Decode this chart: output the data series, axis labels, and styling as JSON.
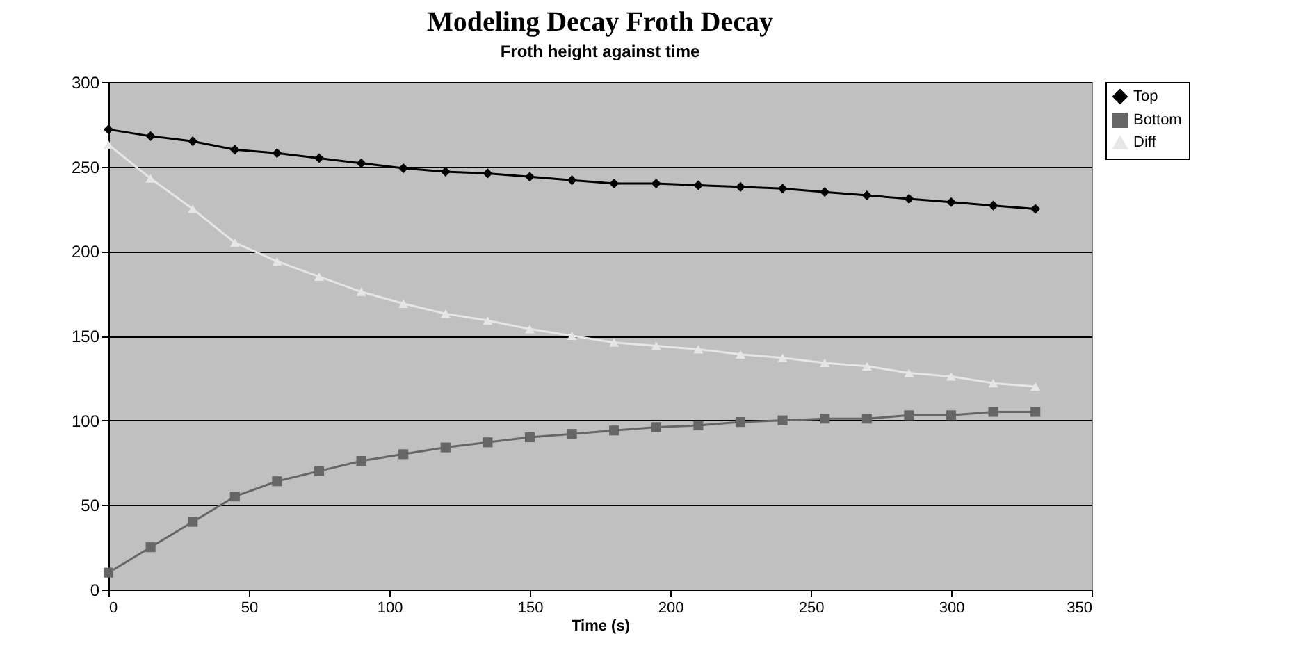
{
  "chart_data": {
    "type": "line",
    "title": "Modeling Decay Froth Decay",
    "subtitle": "Froth height against time",
    "xlabel": "Time (s)",
    "x": [
      0,
      15,
      30,
      45,
      60,
      75,
      90,
      105,
      120,
      135,
      150,
      165,
      180,
      195,
      210,
      225,
      240,
      255,
      270,
      285,
      300,
      315,
      330
    ],
    "series": [
      {
        "name": "Top",
        "color": "#000000",
        "marker": "diamond",
        "values": [
          272,
          268,
          265,
          260,
          258,
          255,
          252,
          249,
          247,
          246,
          244,
          242,
          240,
          240,
          239,
          238,
          237,
          235,
          233,
          231,
          229,
          227,
          225
        ]
      },
      {
        "name": "Bottom",
        "color": "#666666",
        "marker": "square",
        "values": [
          10,
          25,
          40,
          55,
          64,
          70,
          76,
          80,
          84,
          87,
          90,
          92,
          94,
          96,
          97,
          99,
          100,
          101,
          101,
          103,
          103,
          105,
          105
        ]
      },
      {
        "name": "Diff",
        "color": "#e6e6e6",
        "marker": "triangle",
        "values": [
          263,
          243,
          225,
          205,
          194,
          185,
          176,
          169,
          163,
          159,
          154,
          150,
          146,
          144,
          142,
          139,
          137,
          134,
          132,
          128,
          126,
          122,
          120
        ]
      }
    ],
    "xlim": [
      0,
      350
    ],
    "xticks": [
      0,
      50,
      100,
      150,
      200,
      250,
      300,
      350
    ],
    "ylim": [
      0,
      300
    ],
    "yticks": [
      0,
      50,
      100,
      150,
      200,
      250,
      300
    ],
    "grid": "y",
    "legend": "right",
    "line_style": "solid"
  }
}
